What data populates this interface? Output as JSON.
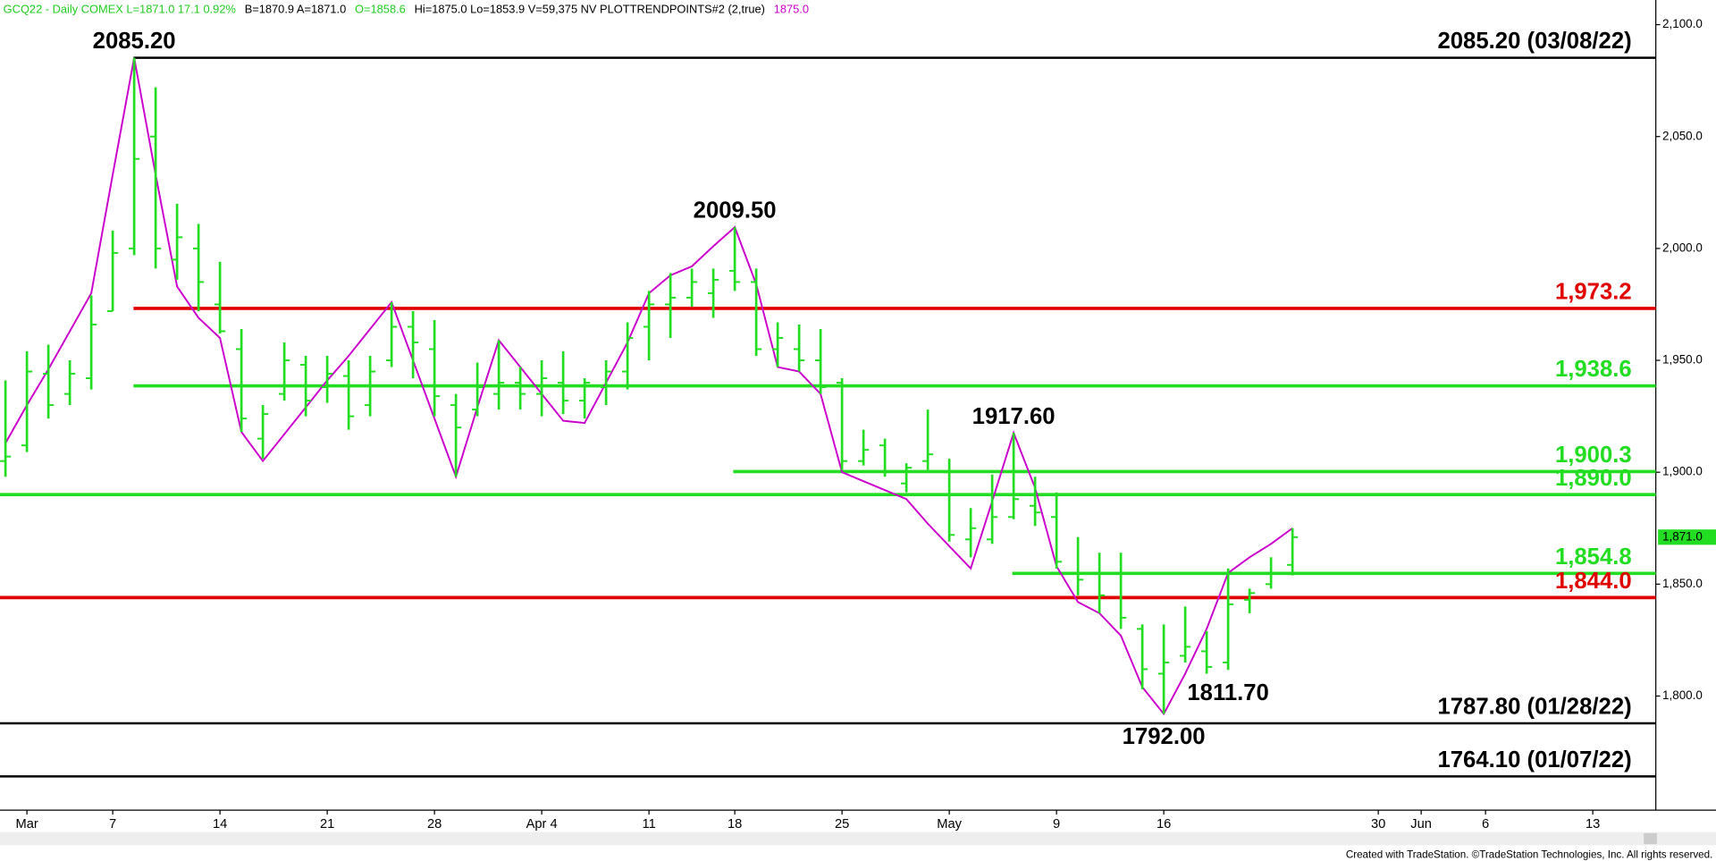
{
  "header": [
    {
      "text": "GCQ22 - Daily  COMEX  L=1871.0  17.1  0.92%",
      "color": "#22cc22"
    },
    {
      "text": "B=1870.9  A=1871.0",
      "color": "#000000"
    },
    {
      "text": "O=1858.6",
      "color": "#22cc22"
    },
    {
      "text": "Hi=1875.0  Lo=1853.9  V=59,375  NV  PLOTTRENDPOINTS#2 (2,true)",
      "color": "#000000"
    },
    {
      "text": "1875.0",
      "color": "#cc00cc"
    }
  ],
  "footer": "Created with TradeStation. ©TradeStation Technologies, Inc. All rights reserved.",
  "chart_data": {
    "type": "ohlc",
    "color": "#22dd22",
    "categories": [
      null,
      "Mar",
      null,
      null,
      null,
      "7",
      null,
      null,
      null,
      null,
      "14",
      null,
      null,
      null,
      null,
      "21",
      null,
      null,
      null,
      null,
      "28",
      null,
      null,
      null,
      null,
      "Apr 4",
      null,
      null,
      null,
      null,
      "11",
      null,
      null,
      null,
      "18",
      null,
      null,
      null,
      null,
      "25",
      null,
      null,
      null,
      null,
      "May",
      null,
      null,
      null,
      null,
      "9",
      null,
      null,
      null,
      null,
      "16",
      null,
      null,
      null,
      null,
      null,
      null,
      null,
      null,
      null,
      "30",
      null,
      "Jun",
      null,
      null,
      "6",
      null,
      null,
      null,
      null,
      "13",
      null,
      null,
      null
    ],
    "open": [
      1905,
      1912,
      1944,
      1935,
      1942,
      1972,
      2000,
      2050,
      1995,
      2000,
      1975,
      1955,
      1915,
      1935,
      1948,
      1938,
      1943,
      1930,
      1950,
      1965,
      1955,
      1930,
      1928,
      1935,
      1940,
      1935,
      1940,
      1932,
      1938,
      1945,
      1965,
      1975,
      1978,
      1980,
      1990,
      1985,
      1955,
      1955,
      1950,
      1940,
      1905,
      1912,
      1895,
      1905,
      1900,
      1870,
      1870,
      1880,
      1885,
      1880,
      1855,
      1855,
      1855,
      1830,
      1810,
      1818,
      1820,
      1815,
      1843,
      1850,
      1858.6,
      null,
      null,
      null,
      null,
      null,
      null,
      null,
      null,
      null,
      null,
      null,
      null,
      null,
      null,
      null,
      null,
      null
    ],
    "high": [
      1941,
      1954,
      1957,
      1950,
      1979,
      2008,
      2085.2,
      2072,
      2020,
      2011,
      1994,
      1964,
      1930,
      1958,
      1952,
      1952,
      1950,
      1952,
      1976,
      1972,
      1968,
      1935,
      1949,
      1959,
      1947,
      1950,
      1954,
      1942,
      1950,
      1967,
      1981,
      1989,
      1991,
      1991,
      2009.5,
      1991,
      1967,
      1966,
      1964,
      1942,
      1919,
      1915,
      1904,
      1928,
      1906,
      1884,
      1899,
      1917.6,
      1898,
      1891,
      1871,
      1864,
      1864,
      1832,
      1832,
      1840,
      1829,
      1857,
      1848,
      1862,
      1875,
      null,
      null,
      null,
      null,
      null,
      null,
      null,
      null,
      null,
      null,
      null,
      null,
      null,
      null,
      null,
      null,
      null
    ],
    "low": [
      1898,
      1909,
      1924,
      1930,
      1937,
      1972,
      1997,
      1991,
      1986,
      1972,
      1962,
      1918,
      1906,
      1932,
      1925,
      1931,
      1919,
      1925,
      1947,
      1942,
      1925,
      1898,
      1925,
      1928,
      1928,
      1925,
      1926,
      1924,
      1930,
      1937,
      1950,
      1960,
      1974,
      1969,
      1981,
      1952,
      1947,
      1945,
      1935,
      1901,
      1903,
      1898,
      1891,
      1901,
      1869,
      1862,
      1868,
      1879,
      1876,
      1857,
      1845,
      1837,
      1830,
      1803,
      1792,
      1815,
      1810,
      1811.7,
      1837,
      1848,
      1853.9,
      null,
      null,
      null,
      null,
      null,
      null,
      null,
      null,
      null,
      null,
      null,
      null,
      null,
      null,
      null,
      null,
      null
    ],
    "close": [
      1907,
      1945,
      1930,
      1944,
      1966,
      1998,
      2040,
      2000,
      2005,
      1985,
      1963,
      1924,
      1926,
      1950,
      1932,
      1944,
      1925,
      1945,
      1965,
      1958,
      1934,
      1920,
      1938,
      1940,
      1935,
      1942,
      1932,
      1940,
      1945,
      1960,
      1975,
      1978,
      1985,
      1986,
      1985,
      1955,
      1960,
      1950,
      1938,
      1905,
      1910,
      1900,
      1902,
      1908,
      1872,
      1875,
      1880,
      1888,
      1882,
      1860,
      1852,
      1845,
      1835,
      1812,
      1815,
      1822,
      1813,
      1841,
      1846,
      1855,
      1871,
      null,
      null,
      null,
      null,
      null,
      null,
      null,
      null,
      null,
      null,
      null,
      null,
      null,
      null,
      null,
      null,
      null
    ],
    "trendline": {
      "color": "#cc00cc",
      "values": [
        1913,
        1930,
        1946,
        1963,
        1980,
        2033,
        2085.2,
        2033,
        1983,
        1969,
        1960,
        1918,
        1905,
        1917,
        1929,
        1941,
        1952,
        1964,
        1976,
        1950,
        1924,
        1898,
        1929,
        1959,
        1947,
        1935,
        1923,
        1922,
        1940,
        1958,
        1980,
        1988,
        1992,
        2001,
        2009.5,
        1984,
        1947,
        1945,
        1935,
        1900,
        1896,
        1892,
        1888,
        1877,
        1867,
        1857,
        1887,
        1917.6,
        1893,
        1858,
        1842,
        1837,
        1827,
        1804,
        1792,
        1810,
        1830,
        1855,
        1862,
        1868,
        1875,
        null,
        null,
        null,
        null,
        null,
        null,
        null,
        null,
        null,
        null,
        null,
        null,
        null,
        null,
        null,
        null,
        null
      ]
    },
    "ylim": [
      1749,
      2111
    ],
    "yticks": [
      {
        "value": 1800,
        "label": "1,800.0"
      },
      {
        "value": 1850,
        "label": "1,850.0"
      },
      {
        "value": 1900,
        "label": "1,900.0"
      },
      {
        "value": 1950,
        "label": "1,950.0"
      },
      {
        "value": 2000,
        "label": "2,000.0"
      },
      {
        "value": 2050,
        "label": "2,050.0"
      },
      {
        "value": 2100,
        "label": "2,100.0"
      }
    ],
    "last_price": {
      "value": 1871.0,
      "label": "1,871.0",
      "color": "#22dd22"
    },
    "levels": [
      {
        "value": 2085.2,
        "label": "2085.20 (03/08/22)",
        "color": "#000000"
      },
      {
        "value": 1973.2,
        "label": "1,973.2",
        "color": "#e00000"
      },
      {
        "value": 1938.6,
        "label": "1,938.6",
        "color": "#22dd22"
      },
      {
        "value": 1900.3,
        "label": "1,900.3",
        "color": "#22dd22"
      },
      {
        "value": 1890.0,
        "label": "1,890.0",
        "color": "#22dd22"
      },
      {
        "value": 1854.8,
        "label": "1,854.8",
        "color": "#22dd22"
      },
      {
        "value": 1844.0,
        "label": "1,844.0",
        "color": "#e00000"
      },
      {
        "value": 1787.8,
        "label": "1787.80 (01/28/22)",
        "color": "#000000"
      },
      {
        "value": 1764.1,
        "label": "1764.10 (01/07/22)",
        "color": "#000000"
      }
    ],
    "annotations": [
      {
        "value": 2085.2,
        "label": "2085.20"
      },
      {
        "value": 2009.5,
        "label": "2009.50"
      },
      {
        "value": 1917.6,
        "label": "1917.60"
      },
      {
        "value": 1811.7,
        "label": "1811.70"
      },
      {
        "value": 1792.0,
        "label": "1792.00"
      }
    ]
  }
}
